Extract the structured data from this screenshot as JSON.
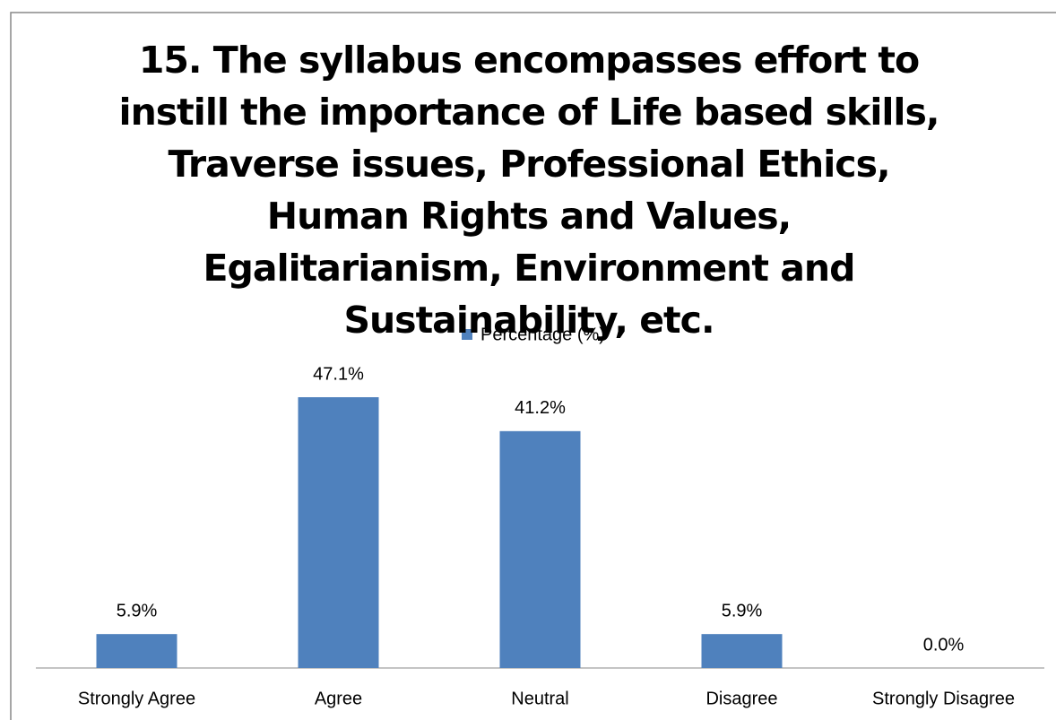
{
  "chart_data": {
    "type": "bar",
    "title": "15. The syllabus encompasses effort to instill the importance of Life based skills, Traverse issues, Professional Ethics, Human Rights and Values, Egalitarianism, Environment and Sustainability, etc.",
    "categories": [
      "Strongly Agree",
      "Agree",
      "Neutral",
      "Disagree",
      "Strongly Disagree"
    ],
    "series": [
      {
        "name": "Percentage (%)",
        "color": "#4f81bd",
        "values": [
          5.9,
          47.1,
          41.2,
          5.9,
          0.0
        ],
        "value_labels": [
          "5.9%",
          "47.1%",
          "41.2%",
          "5.9%",
          "0.0%"
        ]
      }
    ],
    "legend": "top"
  }
}
